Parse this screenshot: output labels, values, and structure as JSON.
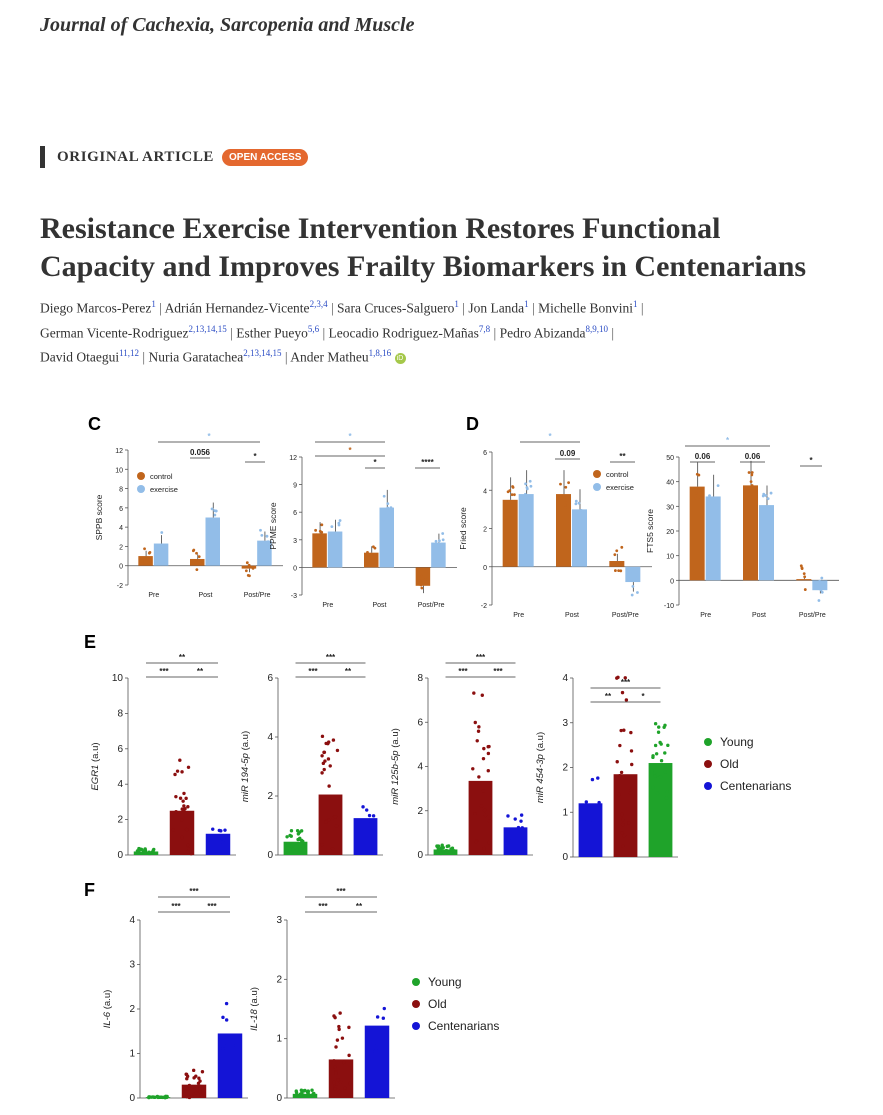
{
  "journal": "Journal of Cachexia, Sarcopenia and Muscle",
  "article_type": "ORIGINAL ARTICLE",
  "badge": "OPEN ACCESS",
  "title_line1": "Resistance Exercise Intervention Restores Functional",
  "title_line2": "Capacity and Improves Frailty Biomarkers in Centenarians",
  "authors": [
    {
      "name": "Diego Marcos-Perez",
      "sup": "1"
    },
    {
      "name": "Adrián Hernandez-Vicente",
      "sup": "2,3,4"
    },
    {
      "name": "Sara Cruces-Salguero",
      "sup": "1"
    },
    {
      "name": "Jon Landa",
      "sup": "1"
    },
    {
      "name": "Michelle Bonvini",
      "sup": "1"
    },
    {
      "name": "German Vicente-Rodriguez",
      "sup": "2,13,14,15"
    },
    {
      "name": "Esther Pueyo",
      "sup": "5,6"
    },
    {
      "name": "Leocadio Rodriguez-Mañas",
      "sup": "7,8"
    },
    {
      "name": "Pedro Abizanda",
      "sup": "8,9,10"
    },
    {
      "name": "David Otaegui",
      "sup": "11,12"
    },
    {
      "name": "Nuria Garatachea",
      "sup": "2,13,14,15"
    },
    {
      "name": "Ander Matheu",
      "sup": "1,8,16"
    }
  ],
  "orcid_label": "iD",
  "colors": {
    "control": "#c0651c",
    "exercise": "#92bde8",
    "young": "#1fa32a",
    "old": "#8b0f0f",
    "centenarians": "#1414d6"
  },
  "panels": {
    "C": "C",
    "D": "D",
    "E": "E",
    "F": "F"
  },
  "chart_data": [
    {
      "id": "sppb",
      "type": "bar",
      "ylabel": "SPPB score",
      "ylim": [
        -2,
        12
      ],
      "yticks": [
        -2,
        0,
        2,
        4,
        6,
        8,
        10,
        12
      ],
      "categories": [
        "Pre",
        "Post",
        "Post/Pre"
      ],
      "series": [
        {
          "name": "control",
          "values": [
            1.0,
            0.7,
            -0.3
          ]
        },
        {
          "name": "exercise",
          "values": [
            2.3,
            5.0,
            2.6
          ]
        }
      ],
      "legend": [
        "control",
        "exercise"
      ],
      "annotations": [
        "0.056",
        "*"
      ]
    },
    {
      "id": "ppme",
      "type": "bar",
      "ylabel": "PPME score",
      "ylim": [
        -3,
        12
      ],
      "yticks": [
        -3,
        0,
        3,
        6,
        9,
        12
      ],
      "categories": [
        "Pre",
        "Post",
        "Post/Pre"
      ],
      "series": [
        {
          "name": "control",
          "values": [
            3.7,
            1.6,
            -2.0
          ]
        },
        {
          "name": "exercise",
          "values": [
            3.9,
            6.5,
            2.7
          ]
        }
      ],
      "annotations": [
        "*",
        "****"
      ]
    },
    {
      "id": "fried",
      "type": "bar",
      "ylabel": "Fried score",
      "ylim": [
        -2,
        6
      ],
      "yticks": [
        -2,
        0,
        2,
        4,
        6
      ],
      "categories": [
        "Pre",
        "Post",
        "Post/Pre"
      ],
      "series": [
        {
          "name": "control",
          "values": [
            3.5,
            3.8,
            0.3
          ]
        },
        {
          "name": "exercise",
          "values": [
            3.8,
            3.0,
            -0.8
          ]
        }
      ],
      "legend": [
        "control",
        "exercise"
      ],
      "annotations": [
        "0.09",
        "**"
      ]
    },
    {
      "id": "fts5",
      "type": "bar",
      "ylabel": "FTS5 score",
      "ylim": [
        -10,
        50
      ],
      "yticks": [
        -10,
        0,
        10,
        20,
        30,
        40,
        50
      ],
      "categories": [
        "Pre",
        "Post",
        "Post/Pre"
      ],
      "series": [
        {
          "name": "control",
          "values": [
            38,
            38.5,
            0.5
          ]
        },
        {
          "name": "exercise",
          "values": [
            34,
            30.5,
            -4
          ]
        }
      ],
      "annotations": [
        "0.06",
        "0.06",
        "*"
      ]
    },
    {
      "id": "egr1",
      "type": "bar",
      "ylabel": "EGR1",
      "yunit": "(a.u)",
      "ylim": [
        0,
        10
      ],
      "yticks": [
        0,
        2,
        4,
        6,
        8,
        10
      ],
      "categories": [
        "Young",
        "Old",
        "Centenarians"
      ],
      "values": [
        0.2,
        2.5,
        1.2
      ],
      "annotations": [
        "***",
        "**",
        "**"
      ]
    },
    {
      "id": "mir194",
      "type": "bar",
      "ylabel": "miR 194-5p",
      "yunit": "(a.u)",
      "ylim": [
        0,
        6
      ],
      "yticks": [
        0,
        2,
        4,
        6
      ],
      "categories": [
        "Young",
        "Old",
        "Centenarians"
      ],
      "values": [
        0.45,
        2.05,
        1.25
      ],
      "annotations": [
        "***",
        "**",
        "***"
      ]
    },
    {
      "id": "mir125b",
      "type": "bar",
      "ylabel": "miR 125b-5p",
      "yunit": "(a.u)",
      "ylim": [
        0,
        8
      ],
      "yticks": [
        0,
        2,
        4,
        6,
        8
      ],
      "categories": [
        "Young",
        "Old",
        "Centenarians"
      ],
      "values": [
        0.25,
        3.35,
        1.25
      ],
      "annotations": [
        "***",
        "***",
        "***"
      ]
    },
    {
      "id": "mir454",
      "type": "bar",
      "ylabel": "miR 454-3p",
      "yunit": "(a.u)",
      "ylim": [
        0,
        4
      ],
      "yticks": [
        0,
        1,
        2,
        3,
        4
      ],
      "categories": [
        "Centenarians",
        "Old",
        "Young"
      ],
      "values": [
        1.2,
        1.85,
        2.1
      ],
      "annotations": [
        "**",
        "*",
        "***"
      ],
      "legend": [
        "Young",
        "Old",
        "Centenarians"
      ]
    },
    {
      "id": "il6",
      "type": "bar",
      "ylabel": "IL-6",
      "yunit": "(a.u)",
      "ylim": [
        0,
        4
      ],
      "yticks": [
        0,
        1,
        2,
        3,
        4
      ],
      "categories": [
        "Young",
        "Old",
        "Centenarians"
      ],
      "values": [
        0.02,
        0.3,
        1.45
      ],
      "annotations": [
        "***",
        "***",
        "***"
      ]
    },
    {
      "id": "il18",
      "type": "bar",
      "ylabel": "IL-18",
      "yunit": "(a.u)",
      "ylim": [
        0,
        3
      ],
      "yticks": [
        0,
        1,
        2,
        3
      ],
      "categories": [
        "Young",
        "Old",
        "Centenarians"
      ],
      "values": [
        0.07,
        0.65,
        1.22
      ],
      "annotations": [
        "***",
        "**",
        "***"
      ],
      "legend": [
        "Young",
        "Old",
        "Centenarians"
      ]
    }
  ]
}
